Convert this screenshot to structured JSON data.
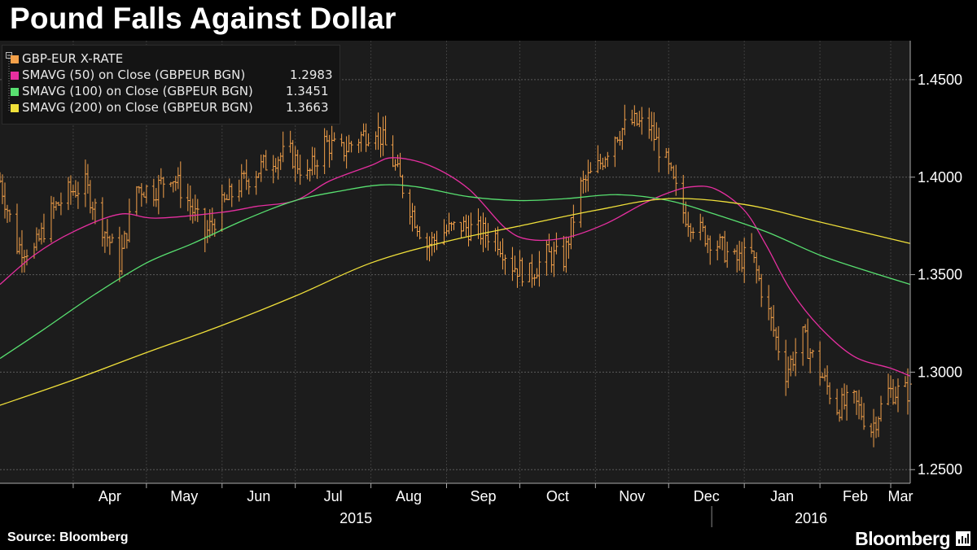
{
  "title": "Pound Falls Against Dollar",
  "source": "Source: Bloomberg",
  "brand": "Bloomberg",
  "colors": {
    "background": "#000000",
    "plot": "#1c1c1c",
    "price": "#f4a14a",
    "sma50": "#e62fa0",
    "sma100": "#58e070",
    "sma200": "#f0e03a"
  },
  "chart_data": {
    "type": "line",
    "y_tick_labels": [
      "1.4500",
      "1.4000",
      "1.3500",
      "1.3000",
      "1.2500"
    ],
    "y_ticks": [
      1.45,
      1.4,
      1.35,
      1.3,
      1.25
    ],
    "ylim": [
      1.243,
      1.47
    ],
    "months": [
      "Apr",
      "May",
      "Jun",
      "Jul",
      "Aug",
      "Sep",
      "Oct",
      "Nov",
      "Dec",
      "Jan",
      "Feb",
      "Mar"
    ],
    "years": [
      "2015",
      "2016"
    ],
    "xlim": [
      "2015-03-02",
      "2016-03-09"
    ],
    "month_starts": [
      "2015-04-01",
      "2015-05-01",
      "2015-06-01",
      "2015-07-01",
      "2015-08-01",
      "2015-09-01",
      "2015-10-01",
      "2015-11-01",
      "2015-12-01",
      "2016-01-01",
      "2016-02-01",
      "2016-03-01"
    ],
    "legend": [
      {
        "label": "GBP-EUR X-RATE",
        "value": "",
        "color": "#f4a14a"
      },
      {
        "label": "SMAVG (50) on Close (GBPEUR BGN)",
        "value": "1.2983",
        "color": "#e62fa0"
      },
      {
        "label": "SMAVG (100) on Close (GBPEUR BGN)",
        "value": "1.3451",
        "color": "#58e070"
      },
      {
        "label": "SMAVG (200) on Close (GBPEUR BGN)",
        "value": "1.3663",
        "color": "#f0e03a"
      }
    ],
    "series": [
      {
        "name": "GBP-EUR X-RATE",
        "kind": "bars",
        "x": [
          "2015-03-02",
          "2015-03-09",
          "2015-03-16",
          "2015-03-23",
          "2015-03-30",
          "2015-04-06",
          "2015-04-13",
          "2015-04-20",
          "2015-04-27",
          "2015-05-04",
          "2015-05-11",
          "2015-05-18",
          "2015-05-25",
          "2015-06-01",
          "2015-06-08",
          "2015-06-15",
          "2015-06-22",
          "2015-06-29",
          "2015-07-06",
          "2015-07-13",
          "2015-07-20",
          "2015-07-27",
          "2015-08-03",
          "2015-08-10",
          "2015-08-17",
          "2015-08-24",
          "2015-08-31",
          "2015-09-07",
          "2015-09-14",
          "2015-09-21",
          "2015-09-28",
          "2015-10-05",
          "2015-10-12",
          "2015-10-19",
          "2015-10-26",
          "2015-11-02",
          "2015-11-09",
          "2015-11-16",
          "2015-11-23",
          "2015-11-30",
          "2015-12-07",
          "2015-12-14",
          "2015-12-21",
          "2015-12-28",
          "2016-01-04",
          "2016-01-11",
          "2016-01-18",
          "2016-01-25",
          "2016-02-01",
          "2016-02-08",
          "2016-02-15",
          "2016-02-22",
          "2016-02-29",
          "2016-03-07"
        ],
        "values": [
          1.398,
          1.365,
          1.362,
          1.382,
          1.392,
          1.396,
          1.375,
          1.356,
          1.395,
          1.393,
          1.402,
          1.388,
          1.37,
          1.385,
          1.396,
          1.403,
          1.41,
          1.412,
          1.4,
          1.418,
          1.413,
          1.42,
          1.426,
          1.408,
          1.385,
          1.365,
          1.372,
          1.375,
          1.372,
          1.37,
          1.355,
          1.35,
          1.36,
          1.358,
          1.395,
          1.405,
          1.422,
          1.428,
          1.426,
          1.407,
          1.382,
          1.372,
          1.366,
          1.357,
          1.36,
          1.33,
          1.3,
          1.318,
          1.3,
          1.282,
          1.285,
          1.271,
          1.29,
          1.29
        ]
      },
      {
        "name": "SMAVG (50) on Close (GBPEUR BGN)",
        "x": [
          "2015-03-02",
          "2015-03-16",
          "2015-04-01",
          "2015-04-20",
          "2015-05-05",
          "2015-06-01",
          "2015-06-15",
          "2015-07-01",
          "2015-07-15",
          "2015-08-01",
          "2015-08-10",
          "2015-08-25",
          "2015-09-10",
          "2015-09-25",
          "2015-10-05",
          "2015-10-20",
          "2015-11-05",
          "2015-11-20",
          "2015-12-01",
          "2015-12-10",
          "2015-12-20",
          "2016-01-01",
          "2016-01-10",
          "2016-01-20",
          "2016-02-01",
          "2016-02-15",
          "2016-03-01",
          "2016-03-09"
        ],
        "values": [
          1.345,
          1.36,
          1.372,
          1.381,
          1.379,
          1.382,
          1.385,
          1.388,
          1.398,
          1.406,
          1.41,
          1.406,
          1.394,
          1.374,
          1.368,
          1.369,
          1.376,
          1.386,
          1.392,
          1.395,
          1.394,
          1.383,
          1.365,
          1.342,
          1.323,
          1.308,
          1.302,
          1.298
        ]
      },
      {
        "name": "SMAVG (100) on Close (GBPEUR BGN)",
        "x": [
          "2015-03-02",
          "2015-03-20",
          "2015-04-10",
          "2015-05-01",
          "2015-05-20",
          "2015-06-10",
          "2015-07-01",
          "2015-07-20",
          "2015-08-05",
          "2015-08-20",
          "2015-09-10",
          "2015-10-01",
          "2015-10-20",
          "2015-11-10",
          "2015-12-01",
          "2015-12-20",
          "2016-01-10",
          "2016-02-01",
          "2016-02-20",
          "2016-03-09"
        ],
        "values": [
          1.307,
          1.322,
          1.34,
          1.356,
          1.366,
          1.378,
          1.388,
          1.393,
          1.396,
          1.395,
          1.39,
          1.388,
          1.389,
          1.391,
          1.388,
          1.381,
          1.372,
          1.36,
          1.352,
          1.345
        ]
      },
      {
        "name": "SMAVG (200) on Close (GBPEUR BGN)",
        "x": [
          "2015-03-02",
          "2015-04-01",
          "2015-05-01",
          "2015-06-01",
          "2015-07-01",
          "2015-08-01",
          "2015-09-01",
          "2015-10-01",
          "2015-11-01",
          "2015-12-01",
          "2016-01-01",
          "2016-02-01",
          "2016-03-09"
        ],
        "values": [
          1.283,
          1.296,
          1.31,
          1.324,
          1.339,
          1.356,
          1.367,
          1.375,
          1.383,
          1.389,
          1.386,
          1.377,
          1.366
        ]
      }
    ]
  }
}
